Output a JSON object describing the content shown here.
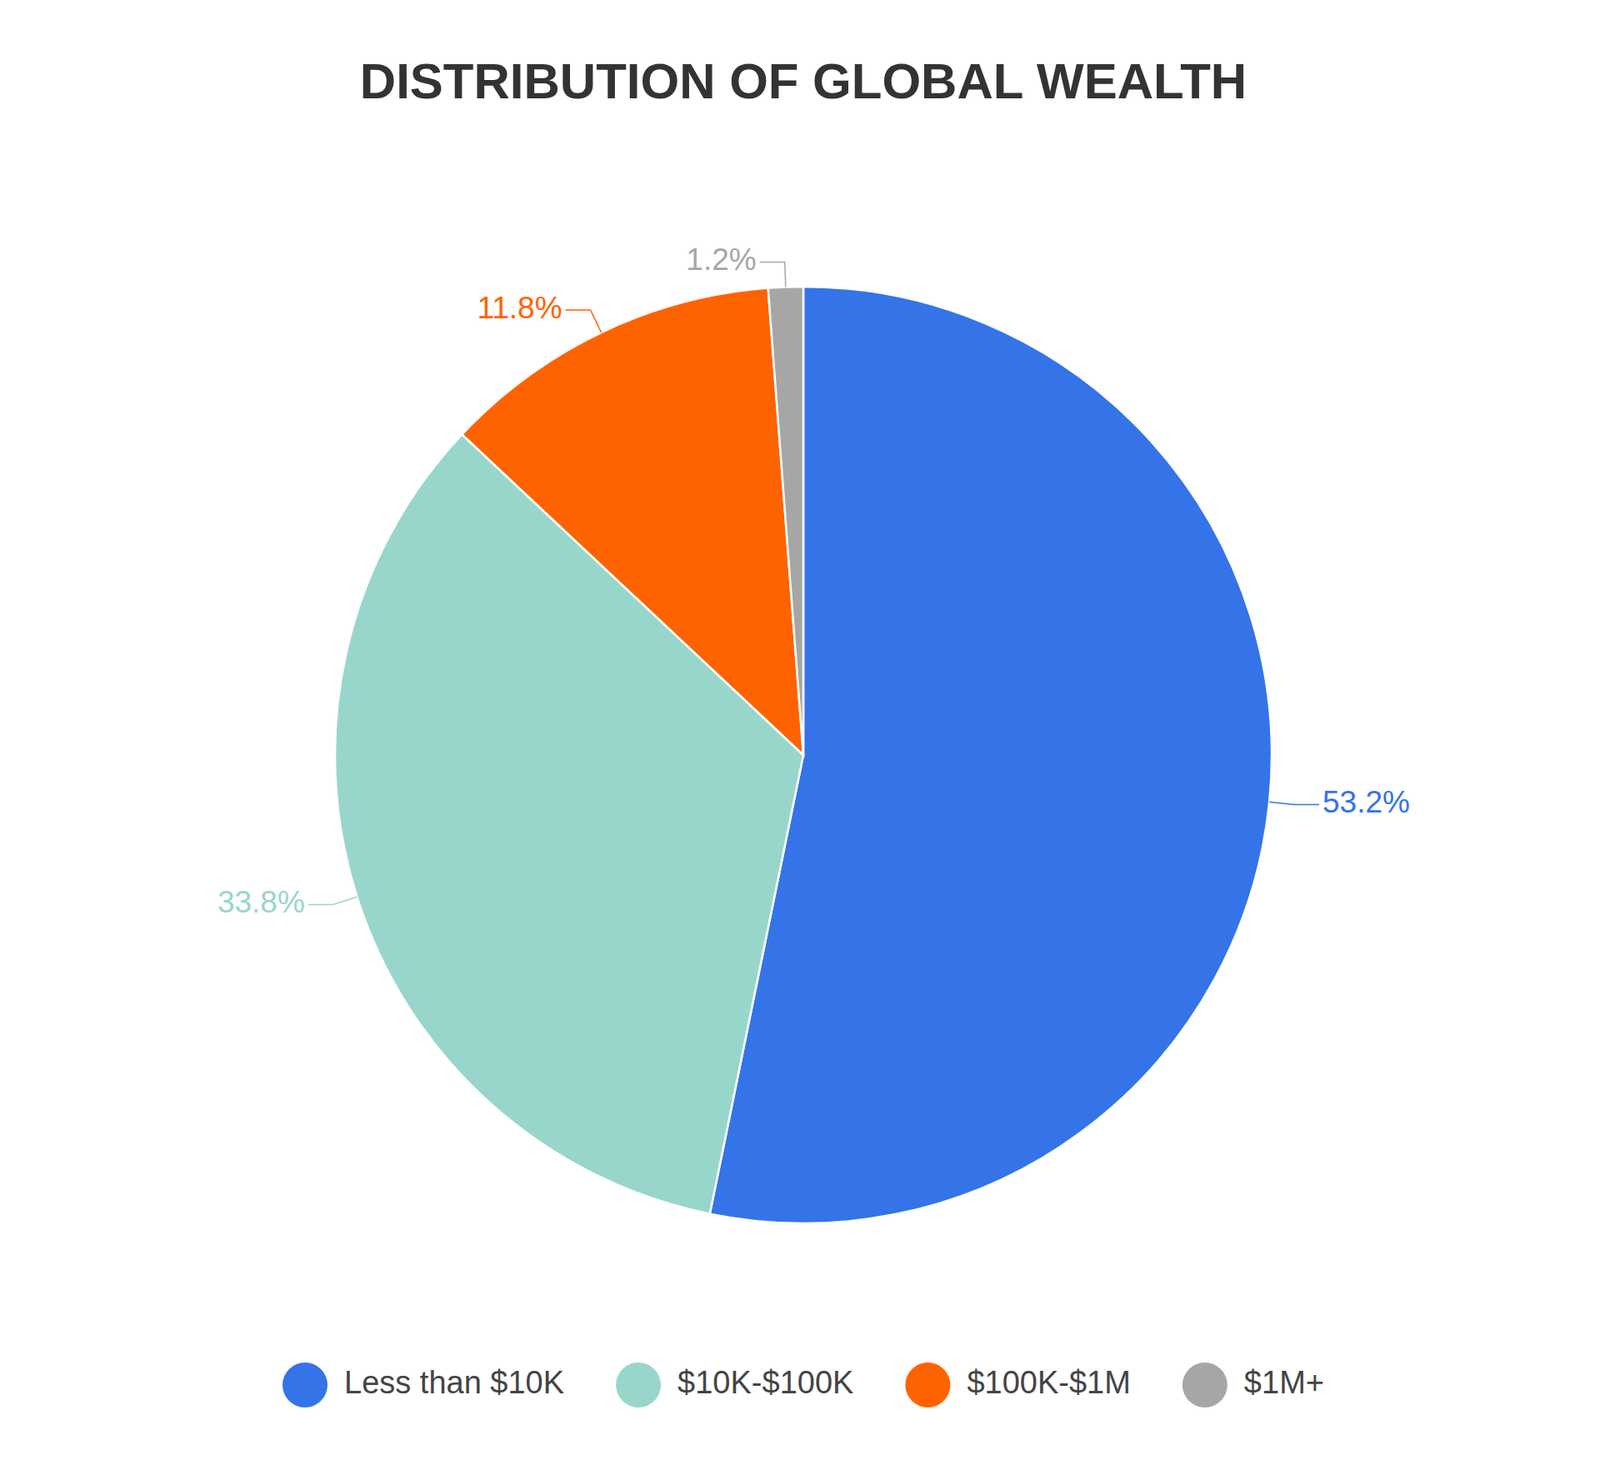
{
  "chart_data": {
    "type": "pie",
    "title": "DISTRIBUTION OF GLOBAL WEALTH",
    "categories": [
      "Less than $10K",
      "$10K-$100K",
      "$100K-$1M",
      "$1M+"
    ],
    "values": [
      53.2,
      33.8,
      11.8,
      1.2
    ],
    "value_labels": [
      "53.2%",
      "33.8%",
      "11.8%",
      "1.2%"
    ],
    "colors": [
      "#3474e8",
      "#98d6cc",
      "#ff6300",
      "#a6a6a6"
    ],
    "data_labels": true,
    "legend": "bottom"
  }
}
